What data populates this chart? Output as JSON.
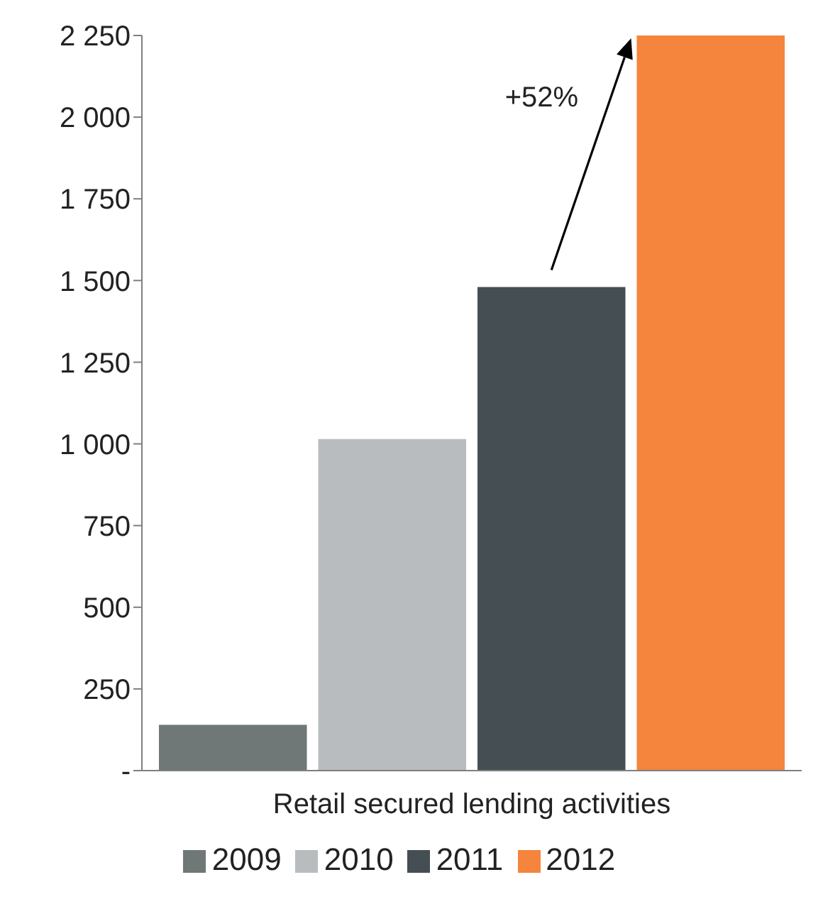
{
  "chart_data": {
    "type": "bar",
    "categories": [
      "Retail secured lending activities"
    ],
    "series": [
      {
        "name": "2009",
        "color": "#6f7777",
        "values": [
          140
        ]
      },
      {
        "name": "2010",
        "color": "#b9bcbe",
        "values": [
          1015
        ]
      },
      {
        "name": "2011",
        "color": "#454e53",
        "values": [
          1480
        ]
      },
      {
        "name": "2012",
        "color": "#f5843c",
        "values": [
          2250
        ]
      }
    ],
    "ylim": [
      0,
      2250
    ],
    "yticks": [
      {
        "value": 0,
        "label": "-"
      },
      250,
      500,
      750,
      {
        "value": 1000,
        "label": "1 000"
      },
      {
        "value": 1250,
        "label": "1 250"
      },
      {
        "value": 1500,
        "label": "1 500"
      },
      {
        "value": 1750,
        "label": "1 750"
      },
      {
        "value": 2000,
        "label": "2 000"
      },
      {
        "value": 2250,
        "label": "2 250"
      }
    ],
    "annotations": [
      "+52%"
    ],
    "grid": false,
    "legend": "bottom"
  }
}
